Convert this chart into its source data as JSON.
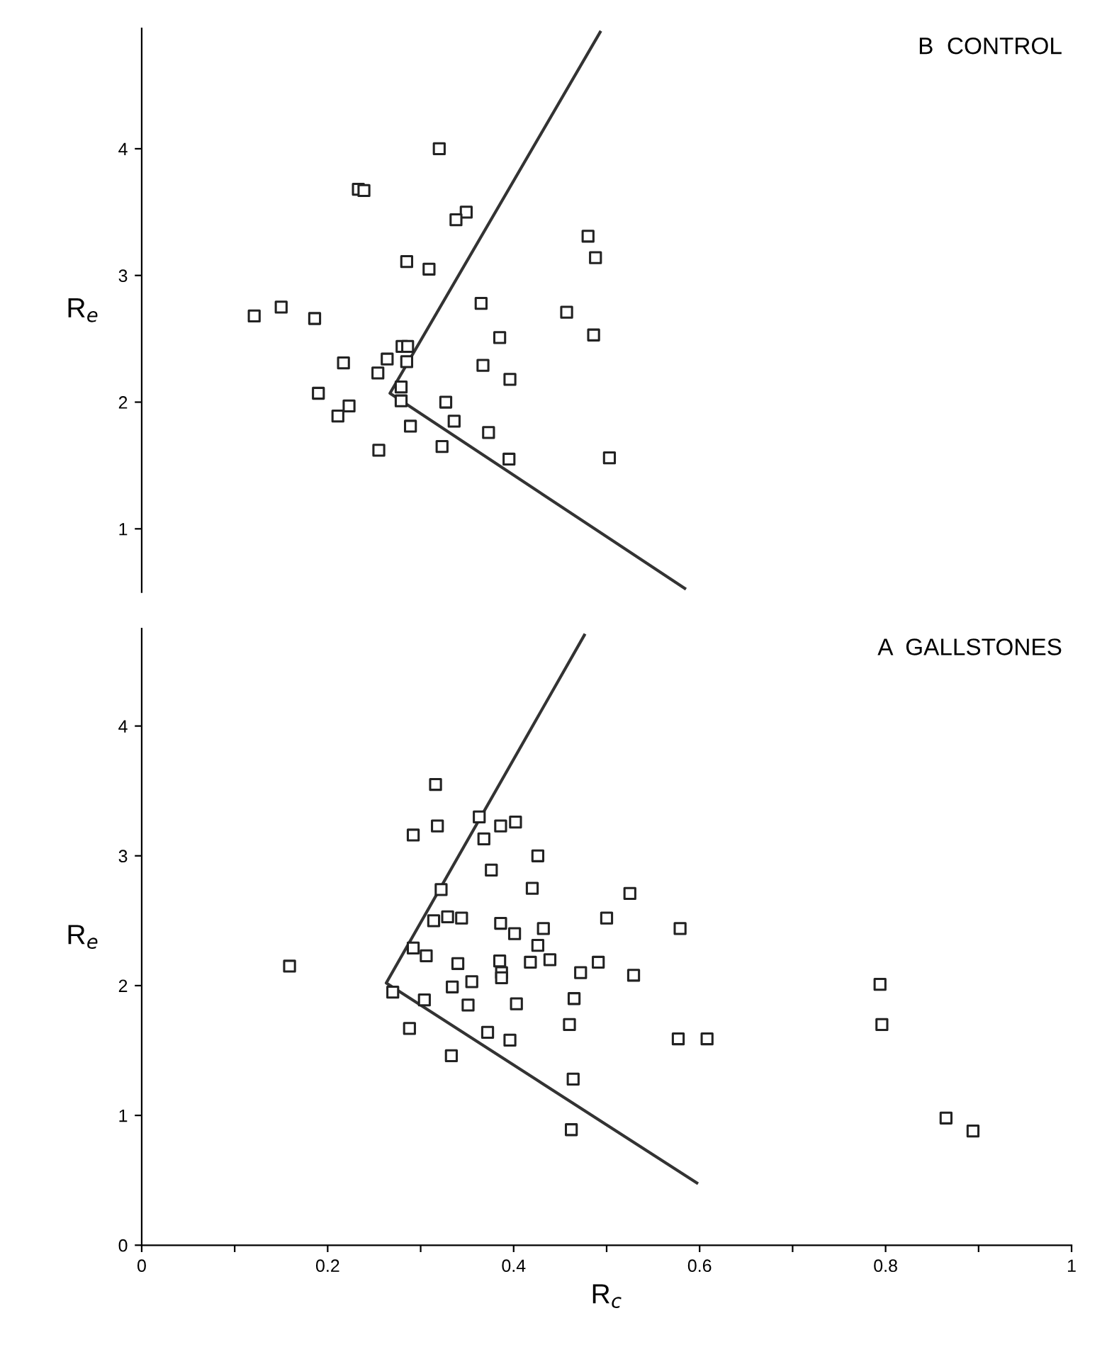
{
  "chart_data": [
    {
      "type": "scatter",
      "title": "B  CONTROL",
      "ylabel": "R$_{e}$",
      "xlim": [
        0,
        1
      ],
      "ylim": [
        0.5,
        4.95
      ],
      "yticks": [
        1,
        2,
        3,
        4
      ],
      "tick_labels": "y",
      "grid": false,
      "legend": false,
      "series": [
        {
          "marker": "square",
          "color": "#222222",
          "x": [
            0.32,
            0.233,
            0.239,
            0.349,
            0.338,
            0.48,
            0.488,
            0.285,
            0.309,
            0.121,
            0.15,
            0.186,
            0.365,
            0.457,
            0.385,
            0.486,
            0.28,
            0.286,
            0.217,
            0.264,
            0.285,
            0.367,
            0.254,
            0.396,
            0.279,
            0.19,
            0.279,
            0.327,
            0.223,
            0.211,
            0.336,
            0.289,
            0.373,
            0.255,
            0.323,
            0.395,
            0.503
          ],
          "values": [
            4.0,
            3.68,
            3.67,
            3.5,
            3.44,
            3.31,
            3.14,
            3.11,
            3.05,
            2.68,
            2.75,
            2.66,
            2.78,
            2.71,
            2.51,
            2.53,
            2.44,
            2.44,
            2.31,
            2.34,
            2.32,
            2.29,
            2.23,
            2.18,
            2.12,
            2.07,
            2.01,
            2.0,
            1.97,
            1.89,
            1.85,
            1.81,
            1.76,
            1.62,
            1.65,
            1.55,
            1.56
          ]
        },
        {
          "type": "line",
          "marker": "none",
          "line_style": "solid",
          "color": "#333333",
          "x": [
            0.493,
            0.267,
            0.584
          ],
          "values": [
            4.92,
            2.07,
            0.53
          ]
        }
      ]
    },
    {
      "type": "scatter",
      "title": "A  GALLSTONES",
      "ylabel": "R$_{e}$",
      "xlabel": "R$_{c}$",
      "xlim": [
        0,
        1
      ],
      "ylim": [
        0,
        4.75
      ],
      "yticks": [
        0,
        1,
        2,
        3,
        4
      ],
      "xticks": [
        0,
        {
          "value": 0.1,
          "label": null
        },
        0.2,
        {
          "value": 0.3,
          "label": null
        },
        0.4,
        {
          "value": 0.5,
          "label": null
        },
        0.6,
        {
          "value": 0.7,
          "label": null
        },
        0.8,
        {
          "value": 0.9,
          "label": null
        },
        1
      ],
      "grid": false,
      "legend": false,
      "series": [
        {
          "marker": "square",
          "color": "#222222",
          "x": [
            0.159,
            0.316,
            0.318,
            0.292,
            0.363,
            0.386,
            0.402,
            0.368,
            0.426,
            0.376,
            0.322,
            0.42,
            0.525,
            0.314,
            0.329,
            0.344,
            0.386,
            0.401,
            0.432,
            0.5,
            0.579,
            0.292,
            0.306,
            0.34,
            0.426,
            0.385,
            0.418,
            0.439,
            0.491,
            0.387,
            0.387,
            0.472,
            0.529,
            0.334,
            0.355,
            0.27,
            0.304,
            0.351,
            0.403,
            0.465,
            0.46,
            0.288,
            0.372,
            0.396,
            0.577,
            0.608,
            0.333,
            0.464,
            0.462,
            0.794,
            0.796,
            0.865,
            0.894
          ],
          "values": [
            2.15,
            3.55,
            3.23,
            3.16,
            3.3,
            3.23,
            3.26,
            3.13,
            3.0,
            2.89,
            2.74,
            2.75,
            2.71,
            2.5,
            2.53,
            2.52,
            2.48,
            2.4,
            2.44,
            2.52,
            2.44,
            2.29,
            2.23,
            2.17,
            2.31,
            2.19,
            2.18,
            2.2,
            2.18,
            2.1,
            2.06,
            2.1,
            2.08,
            1.99,
            2.03,
            1.95,
            1.89,
            1.85,
            1.86,
            1.9,
            1.7,
            1.67,
            1.64,
            1.58,
            1.59,
            1.59,
            1.46,
            1.28,
            0.89,
            2.01,
            1.7,
            0.98,
            0.88
          ]
        },
        {
          "type": "line",
          "marker": "none",
          "line_style": "solid",
          "color": "#333333",
          "x": [
            0.476,
            0.263,
            0.597
          ],
          "values": [
            4.7,
            2.02,
            0.48
          ]
        }
      ]
    }
  ]
}
